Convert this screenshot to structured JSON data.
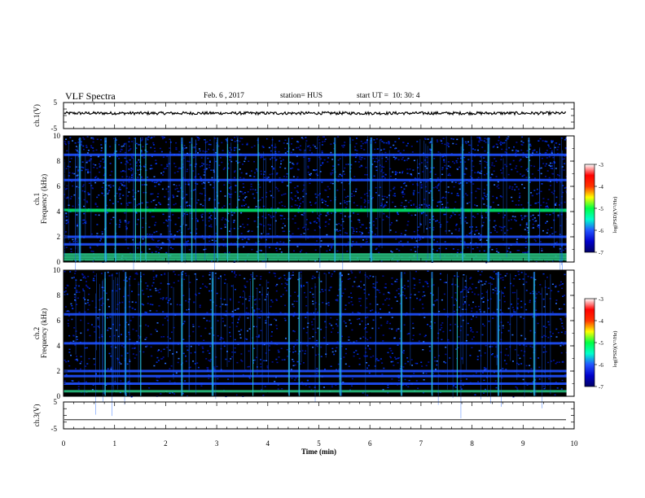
{
  "header": {
    "title": "VLF Spectra",
    "date": "Feb. 6 , 2017",
    "station": "station= HUS",
    "start": "start UT =  10: 30: 4"
  },
  "colors": {
    "background": "#000000",
    "trace": "#000000",
    "colormap": [
      "#000066",
      "#0000cc",
      "#2255ff",
      "#00ffcc",
      "#00ff44",
      "#ffff00",
      "#ff3300",
      "#ff0000",
      "#ffffff"
    ]
  },
  "chart_data": [
    {
      "type": "line",
      "name": "ch1-waveform",
      "ylabel": "ch.1(V)",
      "ylim": [
        -5,
        5
      ],
      "yticks": [
        "5",
        "-5"
      ],
      "xlim": [
        0,
        10
      ],
      "note_values": "approximately flat trace near +1 V with small noise"
    },
    {
      "type": "heatmap",
      "name": "ch1-spectrogram",
      "ylabel": "ch.1\nFrequency (kHz)",
      "ylim": [
        0,
        10
      ],
      "yticks": [
        "0",
        "2",
        "4",
        "6",
        "8",
        "10"
      ],
      "xlim": [
        0,
        9.85
      ],
      "colorbar": {
        "label": "log(PSD)(V²/Hz)",
        "range": [
          -7,
          -3
        ],
        "ticks": [
          "-3",
          "-4",
          "-5",
          "-6",
          "-7"
        ]
      },
      "horizontal_lines_khz": [
        0.2,
        0.4,
        0.6,
        1.4,
        2.0,
        4.1,
        6.5,
        8.5
      ],
      "vertical_bursts_min": [
        0.3,
        0.8,
        1.0,
        1.4,
        1.5,
        1.6,
        2.3,
        2.5,
        3.0,
        3.2,
        3.4,
        3.8,
        4.4,
        5.3,
        5.6,
        6.0,
        7.2,
        7.8,
        8.3,
        9.1
      ]
    },
    {
      "type": "heatmap",
      "name": "ch2-spectrogram",
      "ylabel": "ch.2\nFrequency (kHz)",
      "ylim": [
        0,
        10
      ],
      "yticks": [
        "0",
        "2",
        "4",
        "6",
        "8",
        "10"
      ],
      "xlim": [
        0,
        9.85
      ],
      "colorbar": {
        "label": "log(PSD)(V²/Hz)",
        "range": [
          -7,
          -3
        ],
        "ticks": [
          "-3",
          "-4",
          "-5",
          "-6",
          "-7"
        ]
      },
      "horizontal_lines_khz": [
        0.4,
        1.0,
        1.6,
        2.0,
        4.2,
        6.5
      ],
      "vertical_bursts_min": [
        0.8,
        1.2,
        1.5,
        2.3,
        2.9,
        3.7,
        4.4,
        4.6,
        5.0,
        5.4,
        6.6,
        7.2,
        7.7,
        8.5,
        9.2
      ]
    },
    {
      "type": "line",
      "name": "ch3-waveform",
      "ylabel": "ch.3(V)",
      "xlabel": "Time  (min)",
      "ylim": [
        -5,
        5
      ],
      "yticks": [
        "5",
        "-5"
      ],
      "xlim": [
        0,
        10
      ],
      "xticks": [
        "0",
        "1",
        "2",
        "3",
        "4",
        "5",
        "6",
        "7",
        "8",
        "9",
        "10"
      ],
      "note_values": "flat trace near -1.5 V"
    }
  ]
}
